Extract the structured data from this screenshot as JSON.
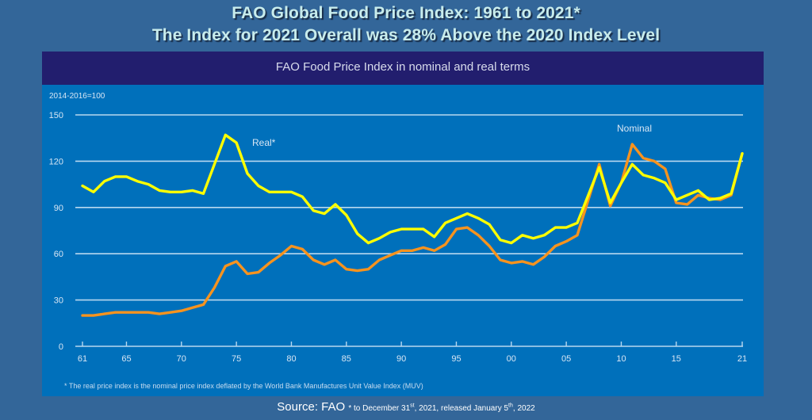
{
  "header": {
    "title_line1": "FAO Global Food Price Index: 1961 to 2021*",
    "title_line2": "The Index for 2021 Overall was 28% Above the 2020 Index Level"
  },
  "panel": {
    "title": "FAO Food Price Index in nominal and real terms",
    "footnote": "* The real price index is the nominal price index deflated by the World Bank Manufactures Unit Value Index (MUV)"
  },
  "source": {
    "label": "Source: FAO",
    "note_pre": "* to December 31",
    "note_sup1": "st",
    "note_mid": ", 2021, released January 5",
    "note_sup2": "th",
    "note_post": ", 2022"
  },
  "colors": {
    "background": "#336699",
    "panel_header": "#221e6e",
    "plot_bg": "#0070bb",
    "real": "#ffff00",
    "nominal": "#f7931e",
    "grid": "#b8d8f0"
  },
  "chart_data": {
    "type": "line",
    "title": "FAO Food Price Index in nominal and real terms",
    "ylabel": "2014-2016=100",
    "xlabel": "",
    "ylim": [
      0,
      150
    ],
    "xlim": [
      1961,
      2021
    ],
    "yticks": [
      0,
      30,
      60,
      90,
      120,
      150
    ],
    "xtick_labels": [
      {
        "year": 1961,
        "label": "61"
      },
      {
        "year": 1965,
        "label": "65"
      },
      {
        "year": 1970,
        "label": "70"
      },
      {
        "year": 1975,
        "label": "75"
      },
      {
        "year": 1980,
        "label": "80"
      },
      {
        "year": 1985,
        "label": "85"
      },
      {
        "year": 1990,
        "label": "90"
      },
      {
        "year": 1995,
        "label": "95"
      },
      {
        "year": 2000,
        "label": "00"
      },
      {
        "year": 2005,
        "label": "05"
      },
      {
        "year": 2010,
        "label": "10"
      },
      {
        "year": 2015,
        "label": "15"
      },
      {
        "year": 2021,
        "label": "21"
      }
    ],
    "grid": true,
    "x": [
      1961,
      1962,
      1963,
      1964,
      1965,
      1966,
      1967,
      1968,
      1969,
      1970,
      1971,
      1972,
      1973,
      1974,
      1975,
      1976,
      1977,
      1978,
      1979,
      1980,
      1981,
      1982,
      1983,
      1984,
      1985,
      1986,
      1987,
      1988,
      1989,
      1990,
      1991,
      1992,
      1993,
      1994,
      1995,
      1996,
      1997,
      1998,
      1999,
      2000,
      2001,
      2002,
      2003,
      2004,
      2005,
      2006,
      2007,
      2008,
      2009,
      2010,
      2011,
      2012,
      2013,
      2014,
      2015,
      2016,
      2017,
      2018,
      2019,
      2020,
      2021
    ],
    "series": [
      {
        "name": "Nominal",
        "label": "Nominal",
        "color": "#f7931e",
        "values": [
          20,
          20,
          21,
          22,
          22,
          22,
          22,
          21,
          22,
          23,
          25,
          27,
          38,
          52,
          55,
          47,
          48,
          54,
          59,
          65,
          63,
          56,
          53,
          56,
          50,
          49,
          50,
          56,
          59,
          62,
          62,
          64,
          62,
          66,
          76,
          77,
          72,
          65,
          56,
          54,
          55,
          53,
          58,
          65,
          68,
          72,
          95,
          118,
          91,
          106,
          131,
          122,
          120,
          115,
          93,
          92,
          98,
          96,
          95,
          98,
          125
        ]
      },
      {
        "name": "Real*",
        "label": "Real*",
        "color": "#ffff00",
        "values": [
          104,
          100,
          107,
          110,
          110,
          107,
          105,
          101,
          100,
          100,
          101,
          99,
          118,
          137,
          132,
          112,
          104,
          100,
          100,
          100,
          97,
          88,
          86,
          92,
          85,
          73,
          67,
          70,
          74,
          76,
          76,
          76,
          71,
          80,
          83,
          86,
          83,
          79,
          69,
          67,
          72,
          70,
          72,
          77,
          77,
          80,
          98,
          116,
          93,
          106,
          118,
          111,
          109,
          106,
          95,
          98,
          101,
          95,
          96,
          99,
          125
        ]
      }
    ]
  }
}
